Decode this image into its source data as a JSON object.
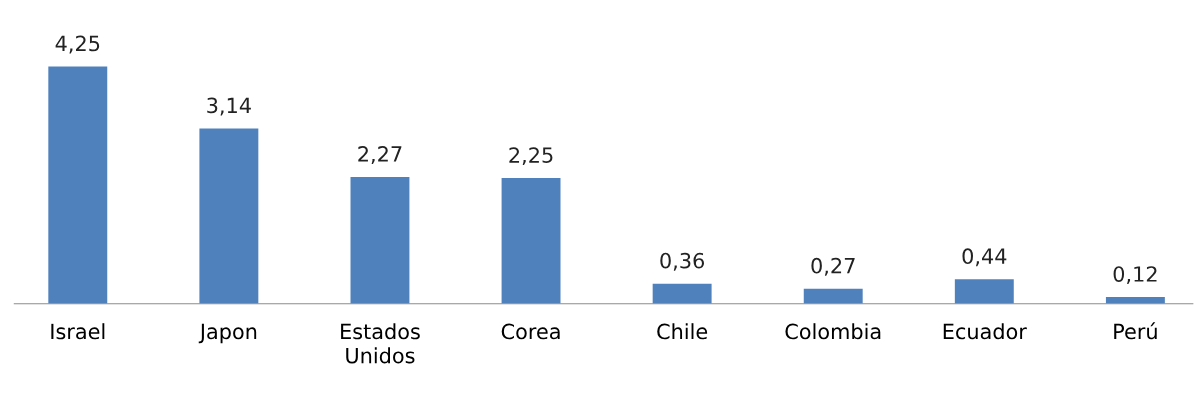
{
  "chart_data": {
    "type": "bar",
    "categories": [
      "Israel",
      "Japon",
      "Estados Unidos",
      "Corea",
      "Chile",
      "Colombia",
      "Ecuador",
      "Perú"
    ],
    "values": [
      4.25,
      3.14,
      2.27,
      2.25,
      0.36,
      0.27,
      0.44,
      0.12
    ],
    "value_labels": [
      "4,25",
      "3,14",
      "2,27",
      "2,25",
      "0,36",
      "0,27",
      "0,44",
      "0,12"
    ],
    "color": "#4f81bd",
    "grid": false,
    "legend": false
  }
}
